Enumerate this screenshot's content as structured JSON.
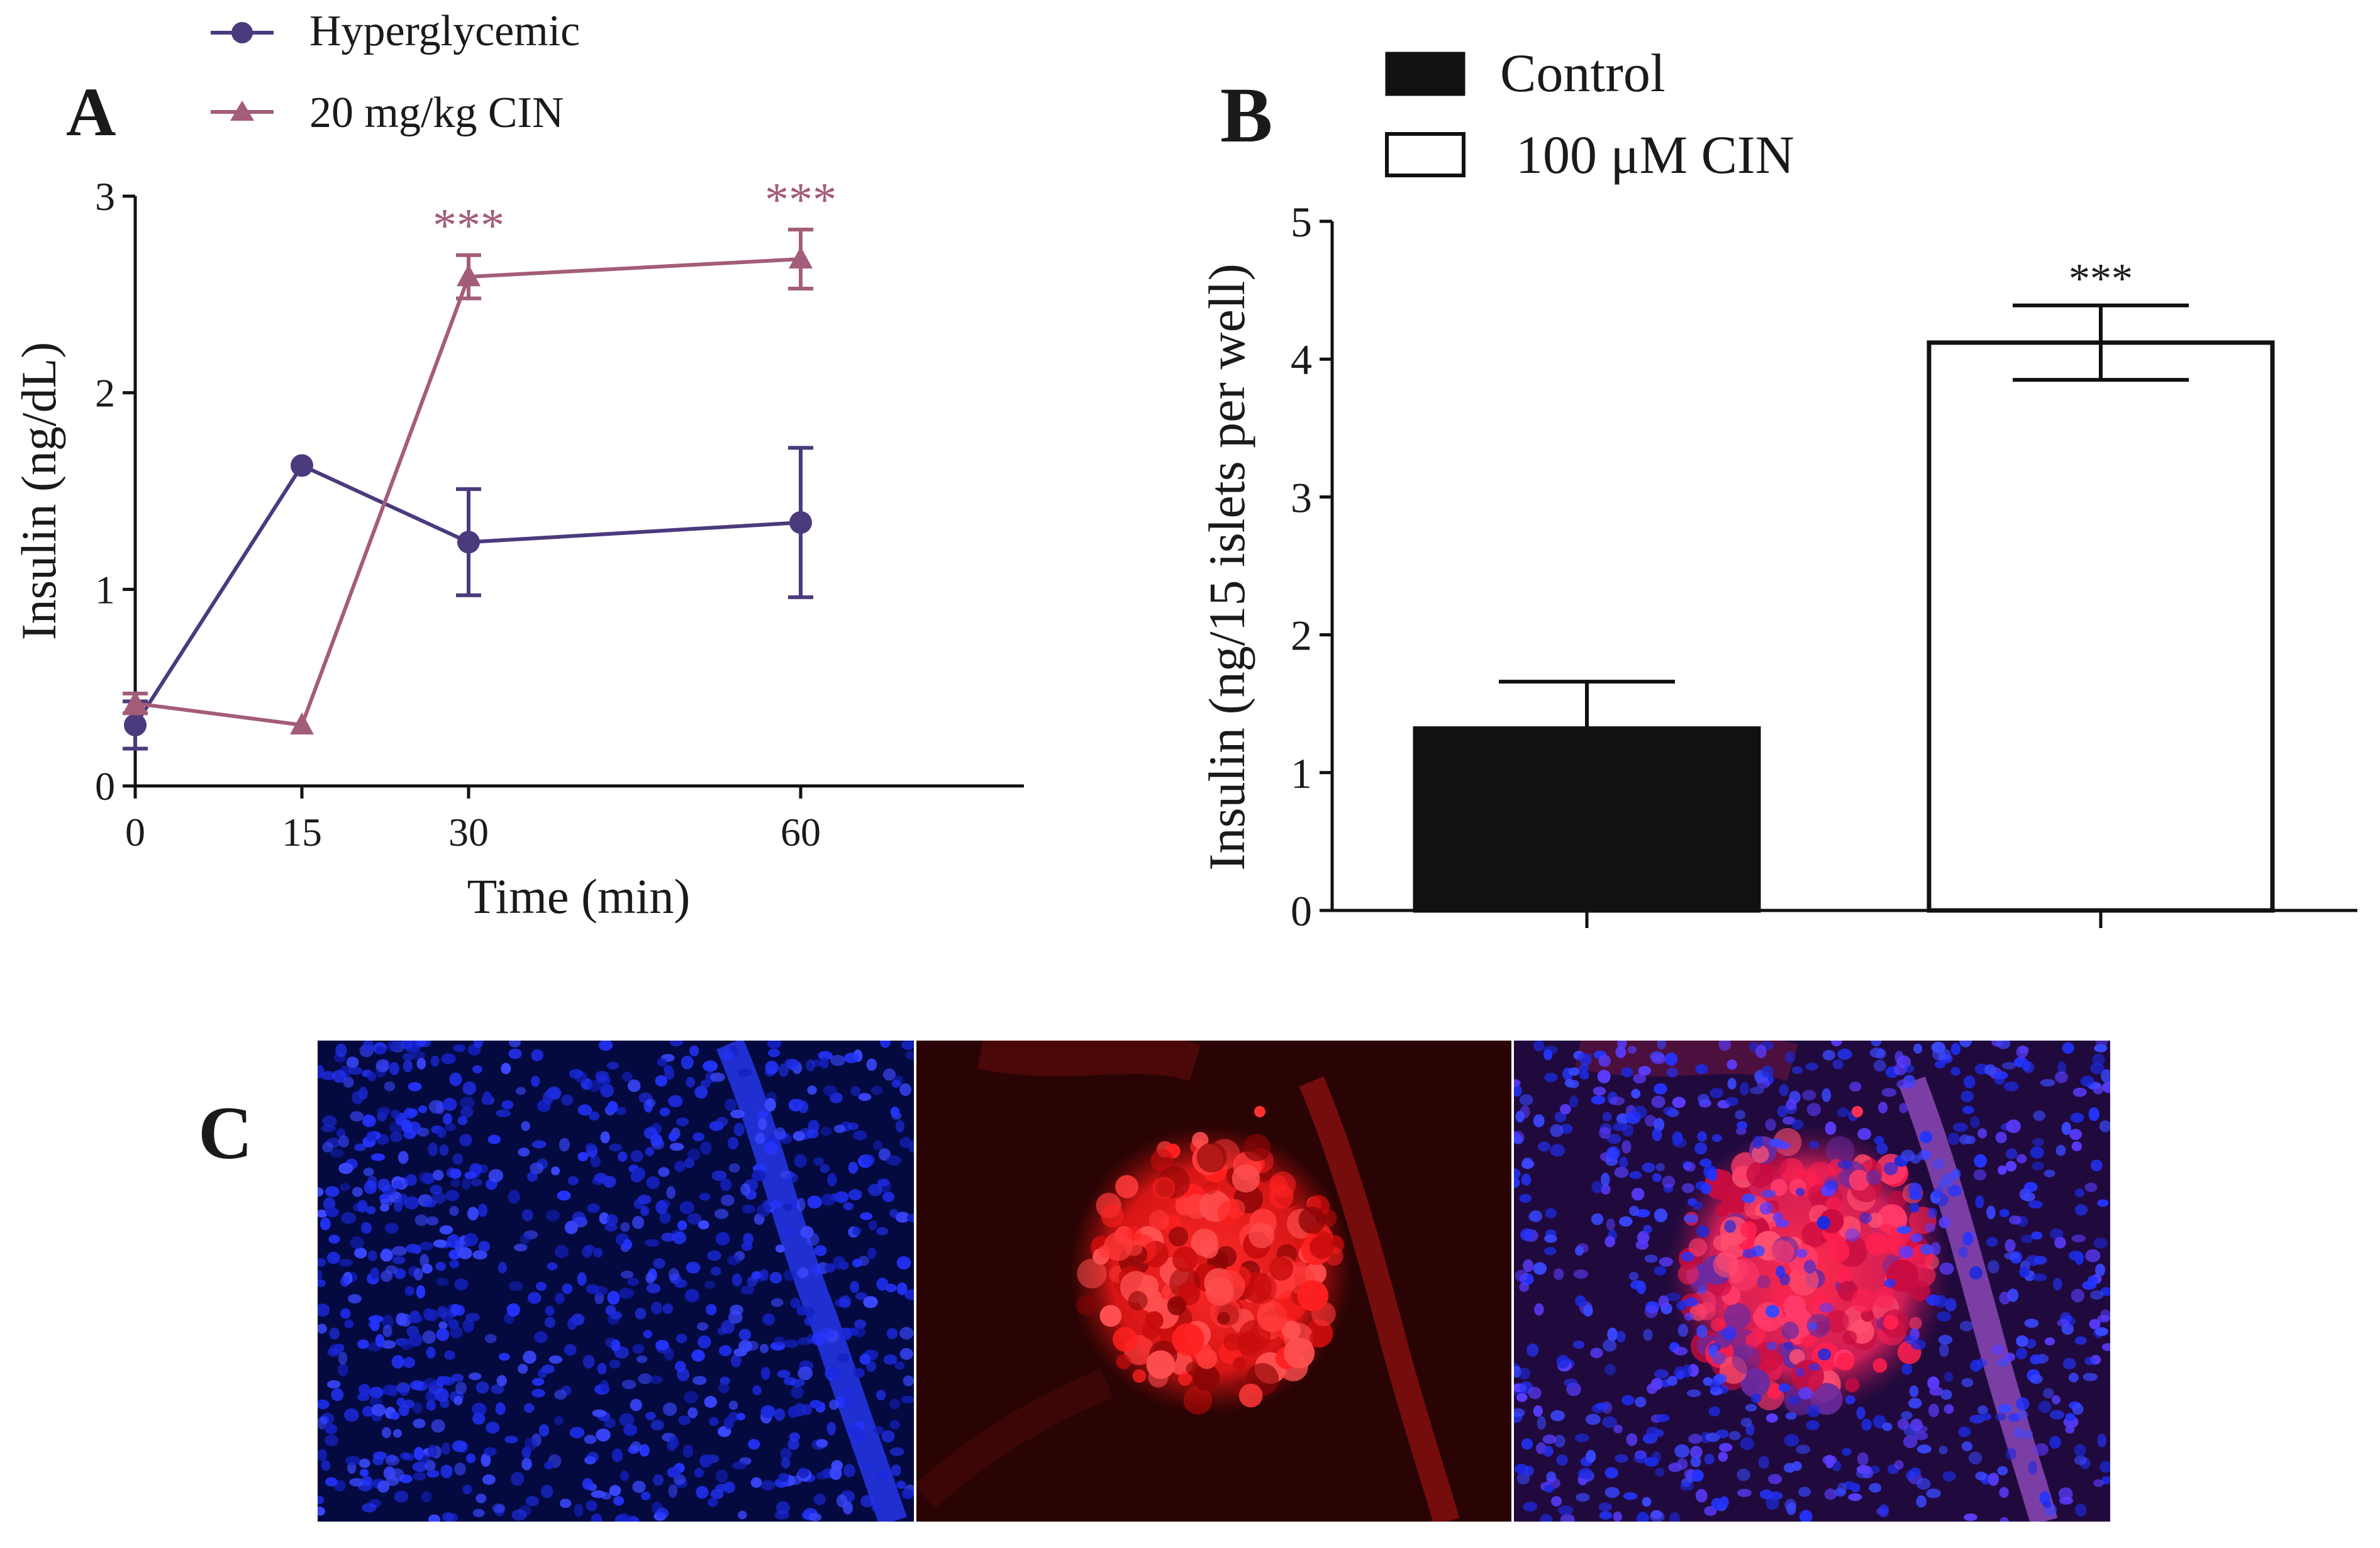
{
  "panel_labels": {
    "a": "A",
    "b": "B",
    "c": "C"
  },
  "colors": {
    "hyperglycemic": "#4b3a7d",
    "cin": "#a35c79",
    "control_bar": "#111111",
    "cin_bar": "#ffffff",
    "axis": "#111111",
    "dapi": "#1f2ad8",
    "insulin_stain": "#e21c1c"
  },
  "chart_data": [
    {
      "type": "line",
      "panel": "A",
      "xlabel": "Time (min)",
      "ylabel": "Insulin (ng/dL)",
      "x_ticks": [
        "0",
        "15",
        "30",
        "60"
      ],
      "x_tick_positions": [
        0,
        15,
        30,
        60
      ],
      "xlim": [
        0,
        80
      ],
      "y_ticks": [
        "0",
        "1",
        "2",
        "3"
      ],
      "ylim": [
        0,
        3
      ],
      "grid": false,
      "legend_position": "top-left",
      "series": [
        {
          "name": "Hyperglycemic",
          "marker": "circle",
          "color": "#4b3a7d",
          "x": [
            0,
            15,
            30,
            60
          ],
          "y": [
            0.31,
            1.63,
            1.24,
            1.34
          ],
          "err": [
            0.12,
            0,
            0.27,
            0.38
          ],
          "sig": [
            "",
            "",
            "",
            ""
          ]
        },
        {
          "name": "20 mg/kg CIN",
          "marker": "triangle",
          "color": "#a35c79",
          "x": [
            0,
            15,
            30,
            60
          ],
          "y": [
            0.42,
            0.31,
            2.59,
            2.68
          ],
          "err": [
            0.05,
            0,
            0.11,
            0.15
          ],
          "sig": [
            "",
            "",
            "***",
            "***"
          ]
        }
      ]
    },
    {
      "type": "bar",
      "panel": "B",
      "ylabel": "Insulin (ng/15 islets per well)",
      "categories": [
        "Control",
        "100 μM CIN"
      ],
      "values": [
        1.32,
        4.12
      ],
      "err": [
        0.34,
        0.27
      ],
      "sig": [
        "",
        "***"
      ],
      "y_ticks": [
        "0",
        "1",
        "2",
        "3",
        "4",
        "5"
      ],
      "ylim": [
        0,
        5
      ],
      "grid": false,
      "legend_position": "top-left",
      "series": [
        {
          "name": "Control",
          "fill": "#111111"
        },
        {
          "name": "100 μM CIN",
          "fill": "#ffffff"
        }
      ]
    }
  ],
  "micrographs": [
    {
      "name": "dapi-nuclei-micrograph",
      "stain": "blue"
    },
    {
      "name": "insulin-stain-micrograph",
      "stain": "red"
    },
    {
      "name": "merged-micrograph",
      "stain": "merged"
    }
  ]
}
